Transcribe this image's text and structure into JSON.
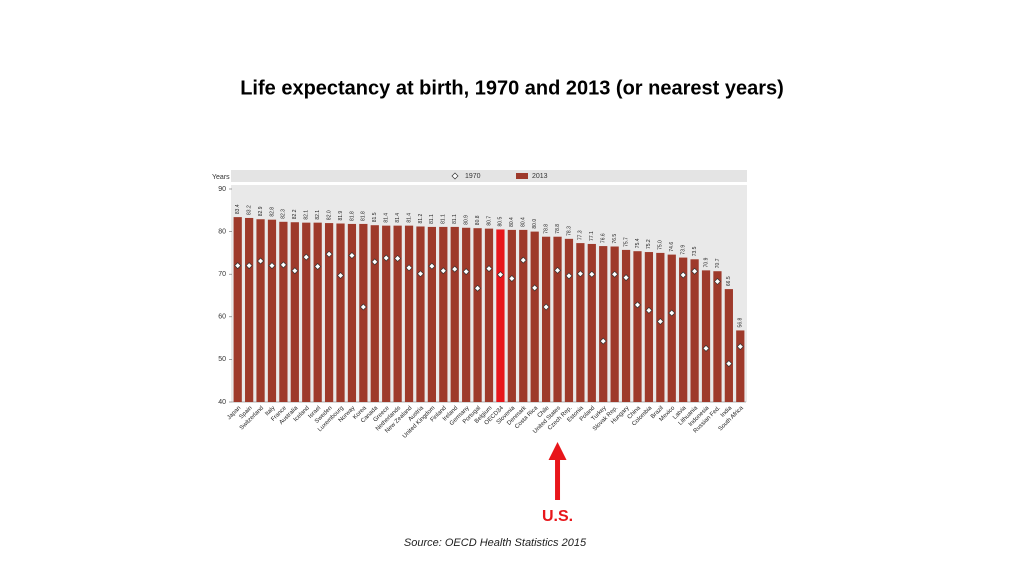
{
  "chart_data": {
    "type": "bar",
    "title": "Life expectancy at birth, 1970 and 2013 (or  nearest   years)",
    "y_label": "Years",
    "source": "Source:  OECD Health Statistics  2015",
    "categories": [
      "Japan",
      "Spain",
      "Switzerland",
      "Italy",
      "France",
      "Australia",
      "Iceland",
      "Israel",
      "Sweden",
      "Luxembourg",
      "Norway",
      "Korea",
      "Canada",
      "Greece",
      "Netherlands",
      "New Zealand",
      "Austria",
      "United Kingdom",
      "Finland",
      "Ireland",
      "Germany",
      "Portugal",
      "Belgium",
      "OECD34",
      "Slovenia",
      "Denmark",
      "Costa Rica",
      "Chile",
      "United States",
      "Czech Rep.",
      "Estonia",
      "Poland",
      "Turkey",
      "Slovak Rep.",
      "Hungary",
      "China",
      "Colombia",
      "Brazil",
      "Mexico",
      "Latvia",
      "Lithuania",
      "Indonesia",
      "Russian Fed.",
      "India",
      "South Africa"
    ],
    "series": [
      {
        "name": "1970",
        "kind": "marker",
        "color": "#ffffff",
        "values": [
          72.0,
          72.0,
          73.1,
          72.0,
          72.2,
          70.8,
          74.0,
          71.8,
          74.7,
          69.7,
          74.4,
          62.3,
          72.9,
          73.8,
          73.7,
          71.5,
          70.1,
          71.9,
          70.8,
          71.2,
          70.6,
          66.7,
          71.3,
          69.9,
          69.0,
          73.3,
          66.8,
          62.3,
          70.9,
          69.6,
          70.1,
          70.0,
          54.3,
          70.0,
          69.2,
          62.8,
          61.5,
          58.9,
          60.9,
          69.8,
          70.7,
          52.6,
          68.3,
          49.0,
          53.0
        ]
      },
      {
        "name": "2013",
        "kind": "bar",
        "color": "#9e3a2b",
        "values": [
          83.4,
          83.2,
          82.9,
          82.8,
          82.3,
          82.2,
          82.1,
          82.1,
          82.0,
          81.9,
          81.8,
          81.8,
          81.5,
          81.4,
          81.4,
          81.4,
          81.2,
          81.1,
          81.1,
          81.1,
          80.9,
          80.8,
          80.7,
          80.5,
          80.4,
          80.4,
          80.0,
          78.8,
          78.8,
          78.3,
          77.3,
          77.1,
          76.6,
          76.5,
          75.7,
          75.4,
          75.2,
          75.0,
          74.6,
          73.9,
          73.5,
          70.9,
          70.7,
          66.5,
          56.8
        ],
        "value_labels": [
          "83.4",
          "83.2",
          "82.9",
          "82.8",
          "82.3",
          "82.2",
          "82.1",
          "82.1",
          "82.0",
          "81.9",
          "81.8",
          "81.8",
          "81.5",
          "81.4",
          "81.4",
          "81.4",
          "81.2",
          "81.1",
          "81.1",
          "81.1",
          "80.9",
          "80.8",
          "80.7",
          "80.5",
          "80.4",
          "80.4",
          "80.0",
          "78.8",
          "78.8",
          "78.3",
          "77.3",
          "77.1",
          "76.6",
          "76.5",
          "75.7",
          "75.4",
          "75.2",
          "75.0",
          "74.6",
          "73.9",
          "73.5",
          "70.9",
          "70.7",
          "66.5",
          "56.8"
        ]
      }
    ],
    "highlight_category": "OECD34",
    "highlight_color": "#e8161b",
    "annotation": {
      "text": "U.S.",
      "category": "United States",
      "color": "#e8161b"
    },
    "ylim": [
      40,
      90
    ],
    "yticks": [
      40,
      50,
      60,
      70,
      80,
      90
    ],
    "grid": false
  }
}
